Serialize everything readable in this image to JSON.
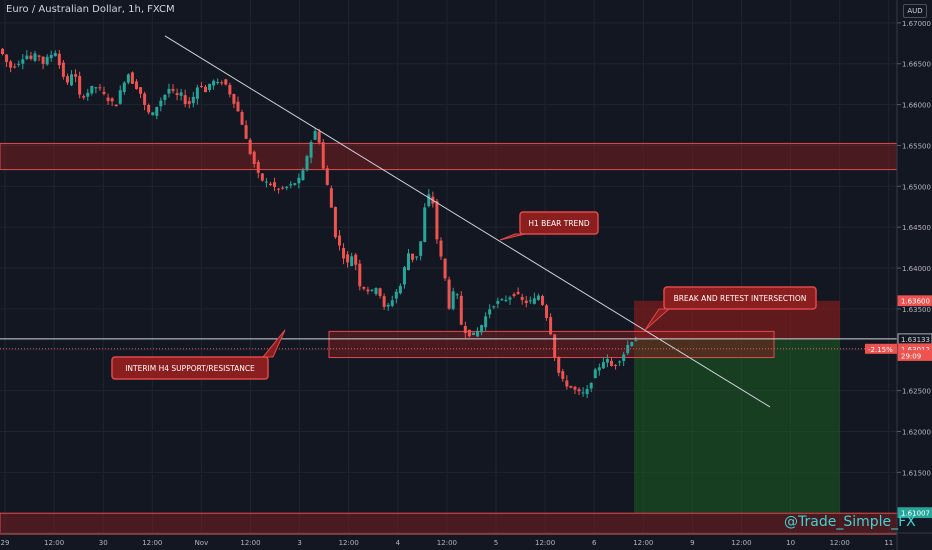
{
  "header": {
    "title": "Euro / Australian Dollar, 1h, FXCM",
    "currency": "AUD"
  },
  "watermark": "@Trade_Simple_FX",
  "colors": {
    "background": "#131722",
    "grid": "#1f2430",
    "bull": "#26a69a",
    "bear": "#ef5350",
    "zone_fill": "#8b1e1e",
    "zone_border": "#e0494a",
    "profit_zone": "#1b5e20",
    "loss_zone": "#7a1c1c",
    "trend_line": "#d1d4dc",
    "price_line": "#ef5350",
    "watermark": "#3fd4d4"
  },
  "chart_data": {
    "type": "candlestick",
    "title": "Euro / Australian Dollar, 1h, FXCM",
    "ylim": [
      1.6055,
      1.6728
    ],
    "y_ticks": [
      "1.67000",
      "1.66500",
      "1.66000",
      "1.65500",
      "1.65000",
      "1.64500",
      "1.64000",
      "1.63500",
      "1.63000",
      "1.62500",
      "1.62000",
      "1.61500",
      "1.61000"
    ],
    "x_ticks": [
      "29",
      "12:00",
      "30",
      "12:00",
      "Nov",
      "12:00",
      "3",
      "12:00",
      "4",
      "12:00",
      "5",
      "12:00",
      "6",
      "12:00",
      "9",
      "12:00",
      "10",
      "12:00",
      "11"
    ],
    "grid": true,
    "ohlc_path": [
      [
        0,
        1.667
      ],
      [
        6,
        1.666
      ],
      [
        12,
        1.6645
      ],
      [
        20,
        1.665
      ],
      [
        28,
        1.6662
      ],
      [
        34,
        1.6655
      ],
      [
        40,
        1.6663
      ],
      [
        46,
        1.665
      ],
      [
        52,
        1.666
      ],
      [
        58,
        1.6665
      ],
      [
        64,
        1.664
      ],
      [
        70,
        1.6625
      ],
      [
        76,
        1.6645
      ],
      [
        82,
        1.661
      ],
      [
        88,
        1.6612
      ],
      [
        94,
        1.662
      ],
      [
        100,
        1.6622
      ],
      [
        106,
        1.6612
      ],
      [
        112,
        1.6605
      ],
      [
        118,
        1.6598
      ],
      [
        124,
        1.662
      ],
      [
        130,
        1.664
      ],
      [
        136,
        1.6625
      ],
      [
        142,
        1.6618
      ],
      [
        148,
        1.6595
      ],
      [
        154,
        1.6585
      ],
      [
        160,
        1.66
      ],
      [
        166,
        1.661
      ],
      [
        172,
        1.662
      ],
      [
        178,
        1.661
      ],
      [
        184,
        1.6612
      ],
      [
        190,
        1.6598
      ],
      [
        196,
        1.661
      ],
      [
        202,
        1.6628
      ],
      [
        208,
        1.6615
      ],
      [
        214,
        1.663
      ],
      [
        220,
        1.6625
      ],
      [
        226,
        1.663
      ],
      [
        232,
        1.6615
      ],
      [
        238,
        1.66
      ],
      [
        244,
        1.658
      ],
      [
        250,
        1.655
      ],
      [
        256,
        1.653
      ],
      [
        262,
        1.651
      ],
      [
        268,
        1.6505
      ],
      [
        274,
        1.6502
      ],
      [
        280,
        1.6495
      ],
      [
        286,
        1.6498
      ],
      [
        292,
        1.65
      ],
      [
        298,
        1.6505
      ],
      [
        304,
        1.651
      ],
      [
        310,
        1.654
      ],
      [
        316,
        1.6565
      ],
      [
        320,
        1.657
      ],
      [
        326,
        1.652
      ],
      [
        332,
        1.649
      ],
      [
        338,
        1.644
      ],
      [
        344,
        1.642
      ],
      [
        350,
        1.6405
      ],
      [
        356,
        1.642
      ],
      [
        362,
        1.638
      ],
      [
        368,
        1.6375
      ],
      [
        374,
        1.637
      ],
      [
        380,
        1.638
      ],
      [
        386,
        1.635
      ],
      [
        392,
        1.6355
      ],
      [
        398,
        1.637
      ],
      [
        404,
        1.638
      ],
      [
        410,
        1.642
      ],
      [
        416,
        1.641
      ],
      [
        422,
        1.642
      ],
      [
        428,
        1.648
      ],
      [
        434,
        1.6495
      ],
      [
        440,
        1.643
      ],
      [
        446,
        1.64
      ],
      [
        452,
        1.635
      ],
      [
        458,
        1.638
      ],
      [
        464,
        1.633
      ],
      [
        470,
        1.632
      ],
      [
        476,
        1.6318
      ],
      [
        482,
        1.6325
      ],
      [
        488,
        1.634
      ],
      [
        494,
        1.6355
      ],
      [
        500,
        1.6358
      ],
      [
        506,
        1.636
      ],
      [
        512,
        1.6365
      ],
      [
        518,
        1.637
      ],
      [
        524,
        1.636
      ],
      [
        530,
        1.6358
      ],
      [
        536,
        1.636
      ],
      [
        542,
        1.6368
      ],
      [
        548,
        1.6345
      ],
      [
        552,
        1.633
      ],
      [
        556,
        1.63
      ],
      [
        560,
        1.6275
      ],
      [
        566,
        1.626
      ],
      [
        572,
        1.6255
      ],
      [
        578,
        1.625
      ],
      [
        584,
        1.6245
      ],
      [
        590,
        1.625
      ],
      [
        596,
        1.627
      ],
      [
        602,
        1.628
      ],
      [
        608,
        1.629
      ],
      [
        614,
        1.628
      ],
      [
        620,
        1.6285
      ],
      [
        626,
        1.6295
      ],
      [
        632,
        1.631
      ],
      [
        636,
        1.6313
      ]
    ],
    "zones": [
      {
        "name": "upper-resistance-zone",
        "y1": 1.65525,
        "y2": 1.65205
      },
      {
        "name": "interim-h4-zone",
        "y1": 1.63225,
        "y2": 1.62905
      },
      {
        "name": "lower-support-zone",
        "y1": 1.61,
        "y2": 1.60745
      }
    ],
    "trend_line": {
      "x1": 165,
      "y1": 1.6684,
      "x2": 770,
      "y2": 1.623
    },
    "horizontal_line": 1.63133,
    "position": {
      "entry": 1.63133,
      "stop": 1.636,
      "target": 1.61007
    },
    "price_labels": [
      {
        "value": 1.636,
        "text": "1.63600",
        "bg": "#ef5350",
        "fg": "#ffffff"
      },
      {
        "value": 1.63133,
        "text": "1.63133",
        "bg": "#131722",
        "fg": "#d1d4dc",
        "border": "#d1d4dc"
      },
      {
        "value": 1.63012,
        "text": "1.63012",
        "prefix": "-2.15%",
        "bg": "#ef5350",
        "fg": "#ffffff"
      },
      {
        "value": 1.6293,
        "text": "29:09",
        "bg": "#ef5350",
        "fg": "#ffffff"
      },
      {
        "value": 1.61007,
        "text": "1.61007",
        "bg": "#26a69a",
        "fg": "#ffffff"
      }
    ],
    "annotations": [
      {
        "text": "H1 BEAR TREND"
      },
      {
        "text": "BREAK AND RETEST INTERSECTION"
      },
      {
        "text": "INTERIM H4 SUPPORT/RESISTANCE"
      }
    ]
  }
}
